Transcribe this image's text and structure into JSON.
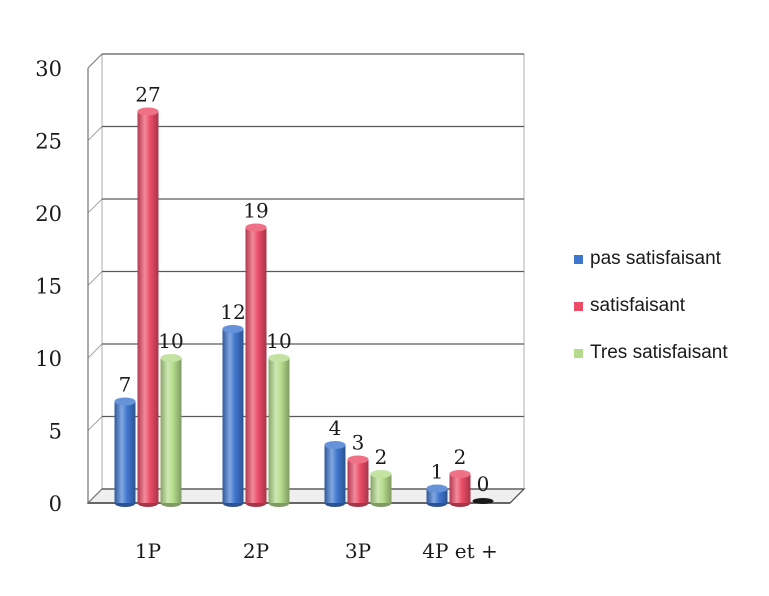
{
  "chart_data": {
    "type": "bar",
    "title": "",
    "xlabel": "",
    "ylabel": "",
    "categories": [
      "1P",
      "2P",
      "3P",
      "4P et +"
    ],
    "series": [
      {
        "name": "pas satisfaisant",
        "values": [
          7,
          12,
          4,
          1
        ],
        "color": "#3f77cf"
      },
      {
        "name": "satisfaisant",
        "values": [
          27,
          19,
          3,
          2
        ],
        "color": "#ec4c68"
      },
      {
        "name": "Tres satisfaisant",
        "values": [
          10,
          10,
          2,
          0
        ],
        "color": "#b5dc8c"
      }
    ],
    "ylim": [
      0,
      30
    ],
    "yticks": [
      "0",
      "5",
      "10",
      "15",
      "20",
      "25",
      "30"
    ],
    "grid": true,
    "style": "3d-cylinder",
    "legend_position": "right"
  }
}
